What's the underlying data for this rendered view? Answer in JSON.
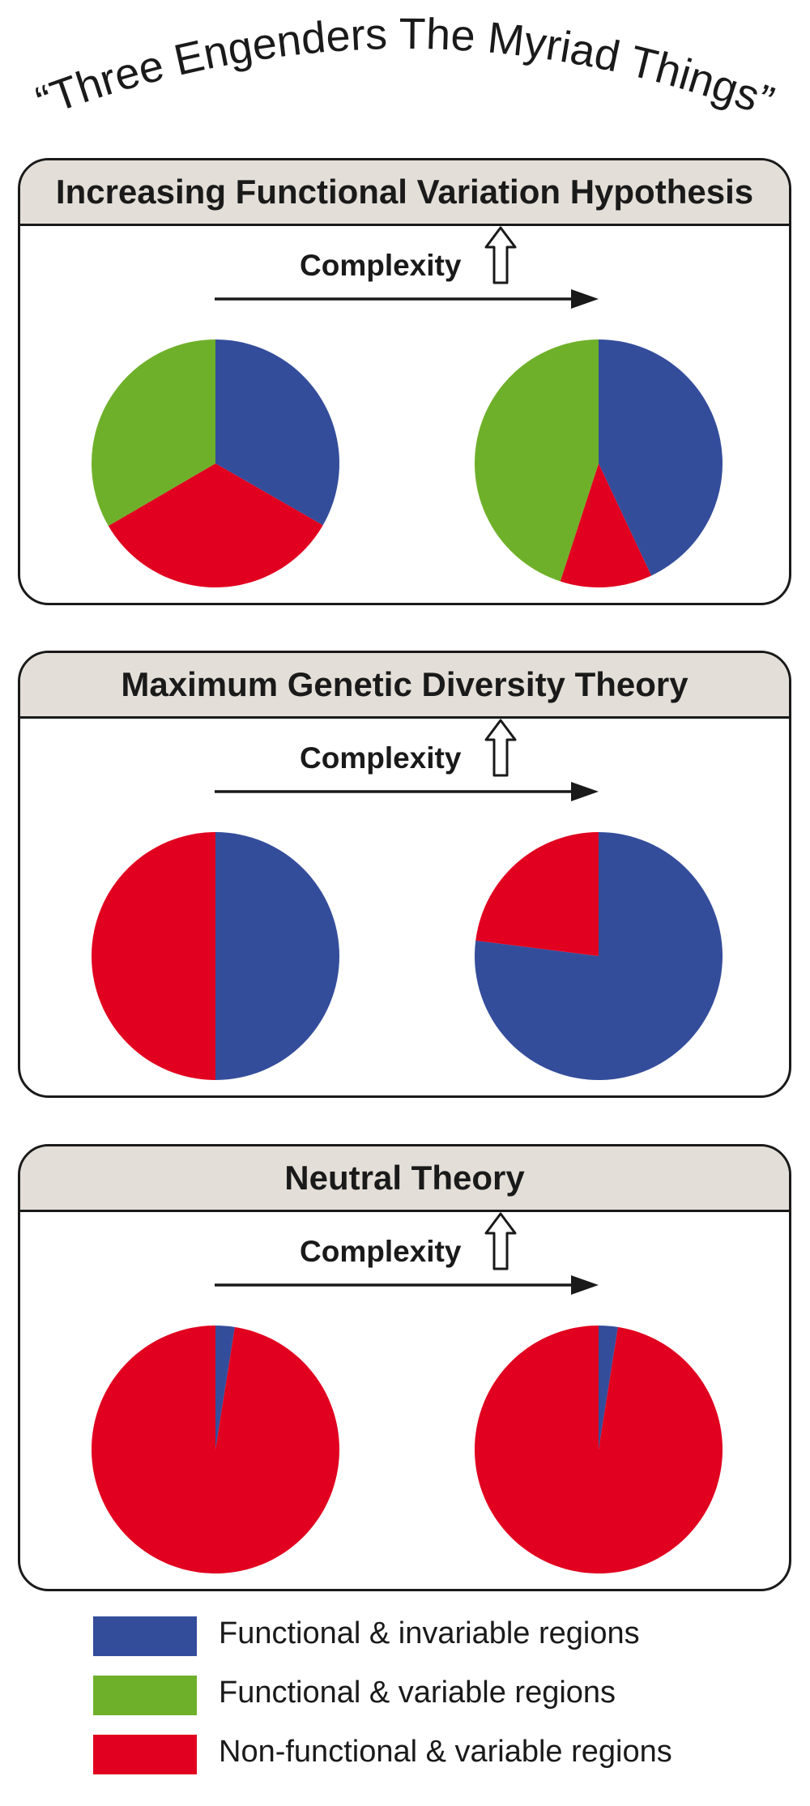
{
  "title": "“Three Engenders The Myriad Things”",
  "colors": {
    "functional_invariable": "#344d9b",
    "functional_variable": "#6fb02a",
    "nonfunctional_variable": "#e1001f"
  },
  "axis_label": "Complexity",
  "panels": [
    {
      "title": "Increasing Functional Variation Hypothesis",
      "pies": [
        {
          "slices": [
            {
              "category": "functional_invariable",
              "value": 33.3
            },
            {
              "category": "nonfunctional_variable",
              "value": 33.3
            },
            {
              "category": "functional_variable",
              "value": 33.4
            }
          ]
        },
        {
          "slices": [
            {
              "category": "functional_invariable",
              "value": 43
            },
            {
              "category": "nonfunctional_variable",
              "value": 12
            },
            {
              "category": "functional_variable",
              "value": 45
            }
          ]
        }
      ]
    },
    {
      "title": "Maximum Genetic Diversity Theory",
      "pies": [
        {
          "slices": [
            {
              "category": "functional_invariable",
              "value": 50
            },
            {
              "category": "nonfunctional_variable",
              "value": 50
            }
          ]
        },
        {
          "slices": [
            {
              "category": "functional_invariable",
              "value": 77
            },
            {
              "category": "nonfunctional_variable",
              "value": 23
            }
          ]
        }
      ]
    },
    {
      "title": "Neutral Theory",
      "pies": [
        {
          "slices": [
            {
              "category": "functional_invariable",
              "value": 2.5
            },
            {
              "category": "nonfunctional_variable",
              "value": 97.5
            }
          ]
        },
        {
          "slices": [
            {
              "category": "functional_invariable",
              "value": 2.5
            },
            {
              "category": "nonfunctional_variable",
              "value": 97.5
            }
          ]
        }
      ]
    }
  ],
  "legend": [
    {
      "category": "functional_invariable",
      "label": "Functional & invariable regions"
    },
    {
      "category": "functional_variable",
      "label": "Functional & variable regions"
    },
    {
      "category": "nonfunctional_variable",
      "label": "Non-functional & variable regions"
    }
  ]
}
